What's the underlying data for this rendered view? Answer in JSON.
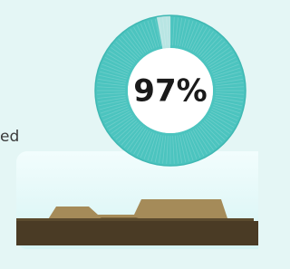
{
  "progress": {
    "value": 97,
    "label": "97%"
  },
  "text_fragment": "ed"
}
